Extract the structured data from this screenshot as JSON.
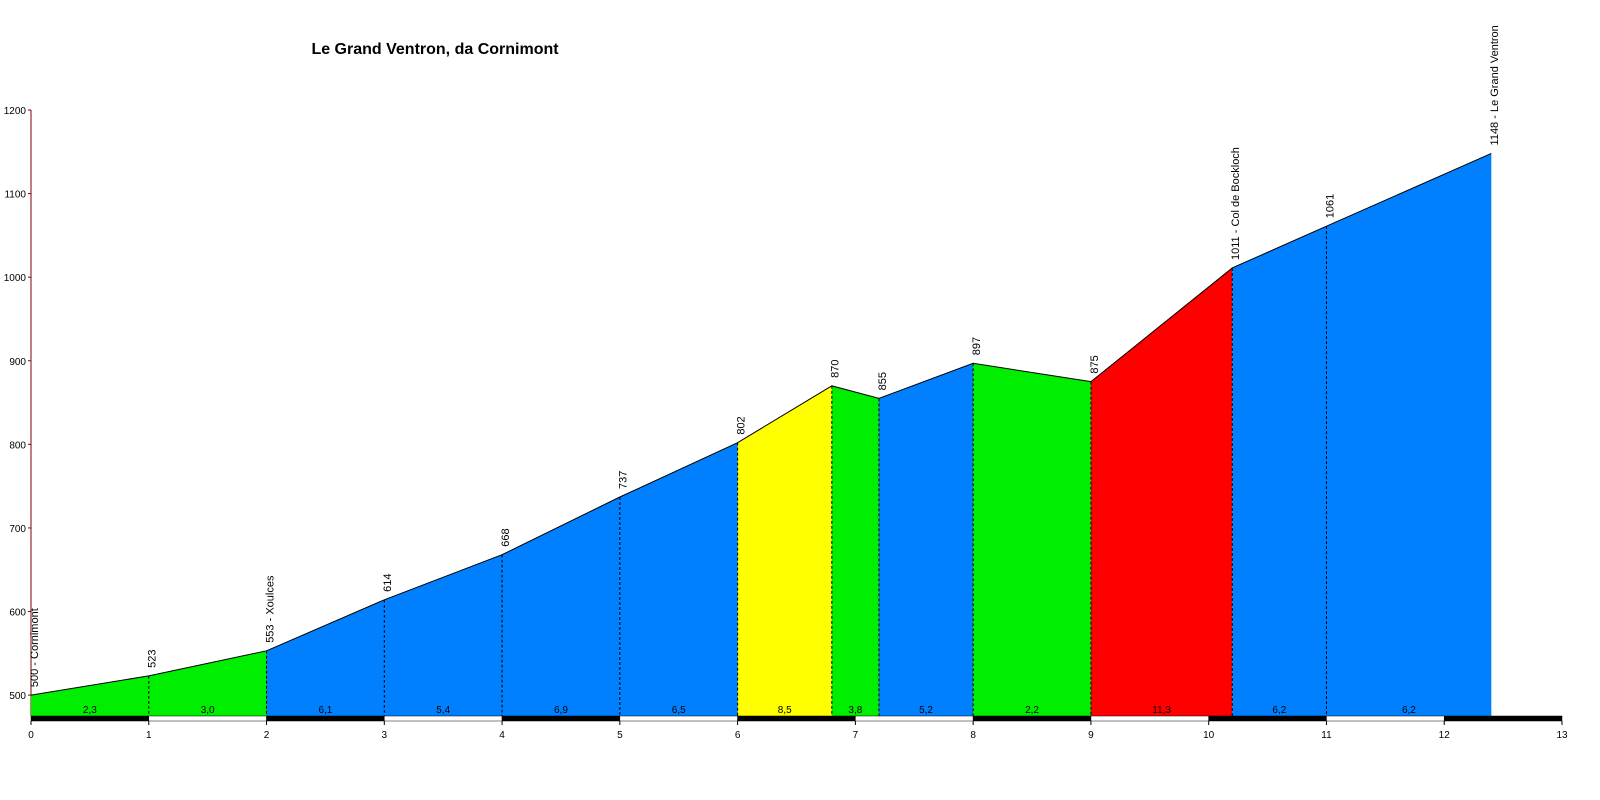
{
  "chart_data": {
    "type": "profile",
    "title": "Le Grand Ventron, da Cornimont",
    "x": [
      0,
      1,
      2,
      3,
      4,
      5,
      6,
      6.8,
      7.2,
      8,
      9,
      10.2,
      11,
      12.4
    ],
    "values": [
      500,
      523,
      553,
      614,
      668,
      737,
      802,
      870,
      855,
      897,
      875,
      1011,
      1061,
      1148
    ],
    "value_labels": [
      "500 - Cornimont",
      "523",
      "553 - Xoulces",
      "614",
      "668",
      "737",
      "802",
      "870",
      "855",
      "897",
      "875",
      "1011 - Col de Bockloch",
      "1061",
      "1148 - Le Grand Ventron"
    ],
    "segment_colors": [
      "#00ee00",
      "#00ee00",
      "#0080ff",
      "#0080ff",
      "#0080ff",
      "#0080ff",
      "#ffff00",
      "#00ee00",
      "#0080ff",
      "#00ee00",
      "#ff0000",
      "#0080ff",
      "#0080ff"
    ],
    "gradients": {
      "values": [
        2.3,
        3.0,
        6.1,
        5.4,
        6.9,
        6.5,
        8.5,
        3.8,
        5.2,
        2.2,
        11.3,
        6.2,
        6.2
      ],
      "value_labels": [
        "2,3",
        "3,0",
        "6,1",
        "5,4",
        "6,9",
        "6,5",
        "8,5",
        "3,8",
        "5,2",
        "2,2",
        "11,3",
        "6,2",
        "6,2"
      ]
    },
    "xlim": [
      0,
      13
    ],
    "xticks": [
      0,
      1,
      2,
      3,
      4,
      5,
      6,
      7,
      8,
      9,
      10,
      11,
      12,
      13
    ],
    "ylim": [
      475,
      1200
    ],
    "yticks": [
      500,
      600,
      700,
      800,
      900,
      1000,
      1100,
      1200
    ]
  }
}
